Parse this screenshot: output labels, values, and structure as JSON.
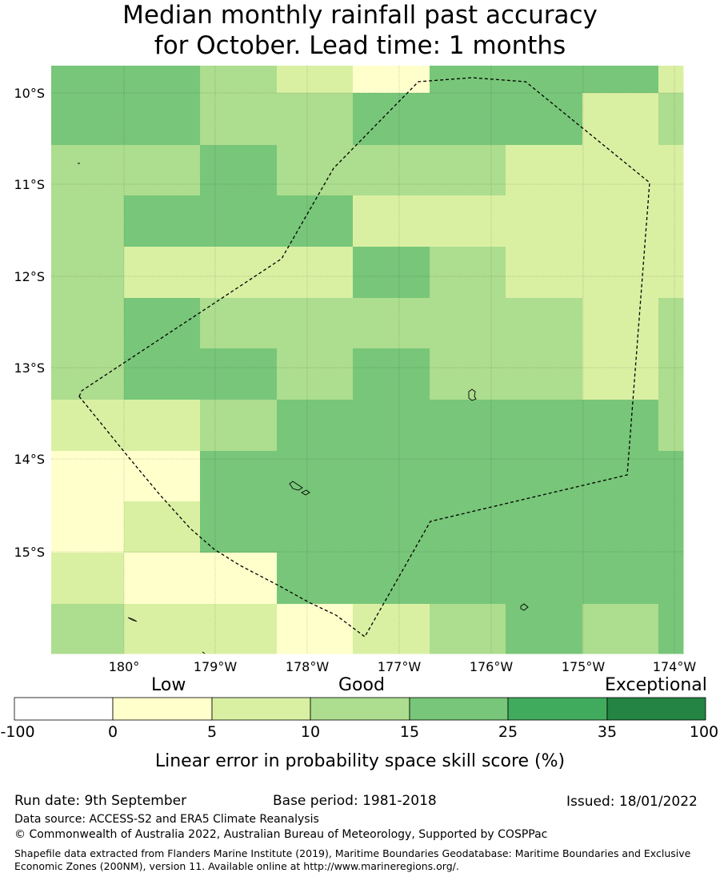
{
  "title": {
    "line1": "Median monthly rainfall past accuracy",
    "line2": "for October. Lead time: 1 months"
  },
  "map": {
    "lat_labels": [
      "10°S",
      "11°S",
      "12°S",
      "13°S",
      "14°S",
      "15°S"
    ],
    "lon_labels": [
      "180°",
      "179°W",
      "178°W",
      "177°W",
      "176°W",
      "175°W",
      "174°W"
    ],
    "grid": [
      [
        3,
        3,
        2,
        1,
        0,
        3,
        3,
        3,
        1
      ],
      [
        3,
        3,
        2,
        2,
        3,
        3,
        3,
        1,
        2
      ],
      [
        2,
        2,
        3,
        2,
        2,
        2,
        1,
        1,
        1
      ],
      [
        2,
        3,
        3,
        3,
        1,
        1,
        1,
        1,
        1
      ],
      [
        2,
        1,
        1,
        1,
        3,
        2,
        1,
        1,
        1
      ],
      [
        2,
        3,
        2,
        2,
        2,
        2,
        2,
        1,
        2
      ],
      [
        2,
        3,
        3,
        2,
        3,
        2,
        2,
        1,
        2
      ],
      [
        1,
        1,
        2,
        3,
        3,
        3,
        3,
        3,
        2
      ],
      [
        0,
        0,
        3,
        3,
        3,
        3,
        3,
        3,
        3
      ],
      [
        0,
        1,
        3,
        3,
        3,
        3,
        3,
        3,
        3
      ],
      [
        1,
        0,
        0,
        3,
        3,
        3,
        3,
        3,
        3
      ],
      [
        2,
        1,
        1,
        0,
        1,
        2,
        3,
        2,
        3
      ]
    ],
    "category_colors": [
      "#ffffcc",
      "#d9f0a3",
      "#addd8e",
      "#78c679"
    ]
  },
  "colorbar": {
    "headers": [
      "Low",
      "Good",
      "Exceptional"
    ],
    "ticks": [
      "-100",
      "0",
      "5",
      "10",
      "15",
      "25",
      "35",
      "100"
    ],
    "colors": [
      "#ffffff",
      "#ffffcc",
      "#d9f0a3",
      "#addd8e",
      "#78c679",
      "#41ab5d",
      "#238443"
    ],
    "axis_label": "Linear error in probability space skill score (%)"
  },
  "footer": {
    "run_date": "Run date: 9th September",
    "base_period": "Base period: 1981-2018",
    "issued": "Issued: 18/01/2022",
    "data_source": "Data source: ACCESS-S2 and ERA5 Climate Reanalysis",
    "copyright": "© Commonwealth of Australia 2022, Australian Bureau of Meteorology, Supported by COSPPac",
    "shapefile": "Shapefile data extracted from Flanders Marine Institute (2019), Maritime Boundaries Geodatabase: Maritime Boundaries and Exclusive Economic Zones (200NM), version 11. Available online at http://www.marineregions.org/."
  }
}
